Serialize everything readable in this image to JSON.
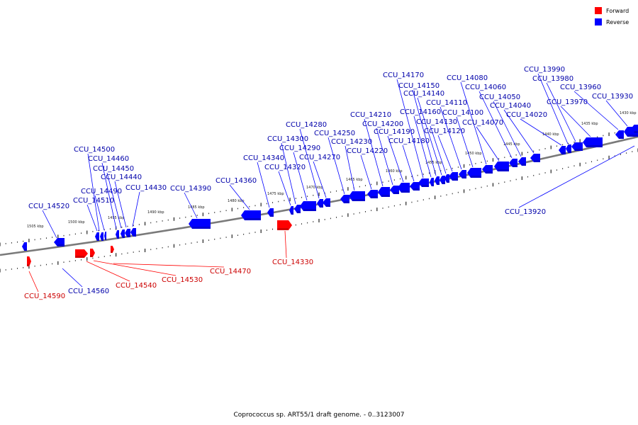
{
  "caption": "Coprococcus sp. ART55/1 draft genome. - 0..3123007",
  "legend": [
    {
      "label": "Forward",
      "color": "#ff0000"
    },
    {
      "label": "Reverse",
      "color": "#0000ff"
    }
  ],
  "colors": {
    "forward": "#ff0000",
    "reverse": "#0000ff",
    "backbone": "#7a7a7a"
  },
  "scale_labels": [
    "1505 kbp",
    "1500 kbp",
    "1495 kbp",
    "1490 kbp",
    "1485 kbp",
    "1480 kbp",
    "1475 kbp",
    "1470 kbp",
    "1465 kbp",
    "1460 kbp",
    "1455 kbp",
    "1450 kbp",
    "1445 kbp",
    "1440 kbp",
    "1435 kbp",
    "1430 kbp"
  ],
  "genes": [
    {
      "id": "g14590",
      "name": "CCU_14590",
      "strand": "forward"
    },
    {
      "id": "g14560",
      "name": "CCU_14560",
      "strand": "reverse"
    },
    {
      "id": "g14540",
      "name": "CCU_14540",
      "strand": "forward"
    },
    {
      "id": "g14530",
      "name": "CCU_14530",
      "strand": "forward"
    },
    {
      "id": "g14470",
      "name": "CCU_14470",
      "strand": "forward"
    },
    {
      "id": "g14520",
      "name": "CCU_14520",
      "strand": "reverse"
    },
    {
      "id": "g14510",
      "name": "CCU_14510",
      "strand": "reverse"
    },
    {
      "id": "g14500",
      "name": "CCU_14500",
      "strand": "reverse"
    },
    {
      "id": "g14490",
      "name": "CCU_14490",
      "strand": "reverse"
    },
    {
      "id": "g14460",
      "name": "CCU_14460",
      "strand": "reverse"
    },
    {
      "id": "g14450",
      "name": "CCU_14450",
      "strand": "reverse"
    },
    {
      "id": "g14440",
      "name": "CCU_14440",
      "strand": "reverse"
    },
    {
      "id": "g14430",
      "name": "CCU_14430",
      "strand": "reverse"
    },
    {
      "id": "g14390",
      "name": "CCU_14390",
      "strand": "reverse"
    },
    {
      "id": "g14360",
      "name": "CCU_14360",
      "strand": "reverse"
    },
    {
      "id": "g14340",
      "name": "CCU_14340",
      "strand": "reverse"
    },
    {
      "id": "g14330",
      "name": "CCU_14330",
      "strand": "forward"
    },
    {
      "id": "g14320",
      "name": "CCU_14320",
      "strand": "reverse"
    },
    {
      "id": "g14300",
      "name": "CCU_14300",
      "strand": "reverse"
    },
    {
      "id": "g14290",
      "name": "CCU_14290",
      "strand": "reverse"
    },
    {
      "id": "g14280",
      "name": "CCU_14280",
      "strand": "reverse"
    },
    {
      "id": "g14270",
      "name": "CCU_14270",
      "strand": "reverse"
    },
    {
      "id": "g14250",
      "name": "CCU_14250",
      "strand": "reverse"
    },
    {
      "id": "g14230",
      "name": "CCU_14230",
      "strand": "reverse"
    },
    {
      "id": "g14220",
      "name": "CCU_14220",
      "strand": "reverse"
    },
    {
      "id": "g14210",
      "name": "CCU_14210",
      "strand": "reverse"
    },
    {
      "id": "g14200",
      "name": "CCU_14200",
      "strand": "reverse"
    },
    {
      "id": "g14190",
      "name": "CCU_14190",
      "strand": "reverse"
    },
    {
      "id": "g14180",
      "name": "CCU_14180",
      "strand": "reverse"
    },
    {
      "id": "g14170",
      "name": "CCU_14170",
      "strand": "reverse"
    },
    {
      "id": "g14160",
      "name": "CCU_14160",
      "strand": "reverse"
    },
    {
      "id": "g14150",
      "name": "CCU_14150",
      "strand": "reverse"
    },
    {
      "id": "g14140",
      "name": "CCU_14140",
      "strand": "reverse"
    },
    {
      "id": "g14130",
      "name": "CCU_14130",
      "strand": "reverse"
    },
    {
      "id": "g14120",
      "name": "CCU_14120",
      "strand": "reverse"
    },
    {
      "id": "g14110",
      "name": "CCU_14110",
      "strand": "reverse"
    },
    {
      "id": "g14100",
      "name": "CCU_14100",
      "strand": "reverse"
    },
    {
      "id": "g14080",
      "name": "CCU_14080",
      "strand": "reverse"
    },
    {
      "id": "g14070",
      "name": "CCU_14070",
      "strand": "reverse"
    },
    {
      "id": "g14060",
      "name": "CCU_14060",
      "strand": "reverse"
    },
    {
      "id": "g14050",
      "name": "CCU_14050",
      "strand": "reverse"
    },
    {
      "id": "g14040",
      "name": "CCU_14040",
      "strand": "reverse"
    },
    {
      "id": "g14020",
      "name": "CCU_14020",
      "strand": "reverse"
    },
    {
      "id": "g13990",
      "name": "CCU_13990",
      "strand": "reverse"
    },
    {
      "id": "g13980",
      "name": "CCU_13980",
      "strand": "reverse"
    },
    {
      "id": "g13970",
      "name": "CCU_13970",
      "strand": "reverse"
    },
    {
      "id": "g13960",
      "name": "CCU_13960",
      "strand": "reverse"
    },
    {
      "id": "g13930",
      "name": "CCU_13930",
      "strand": "reverse"
    },
    {
      "id": "g13920",
      "name": "CCU_13920",
      "strand": "reverse"
    }
  ]
}
